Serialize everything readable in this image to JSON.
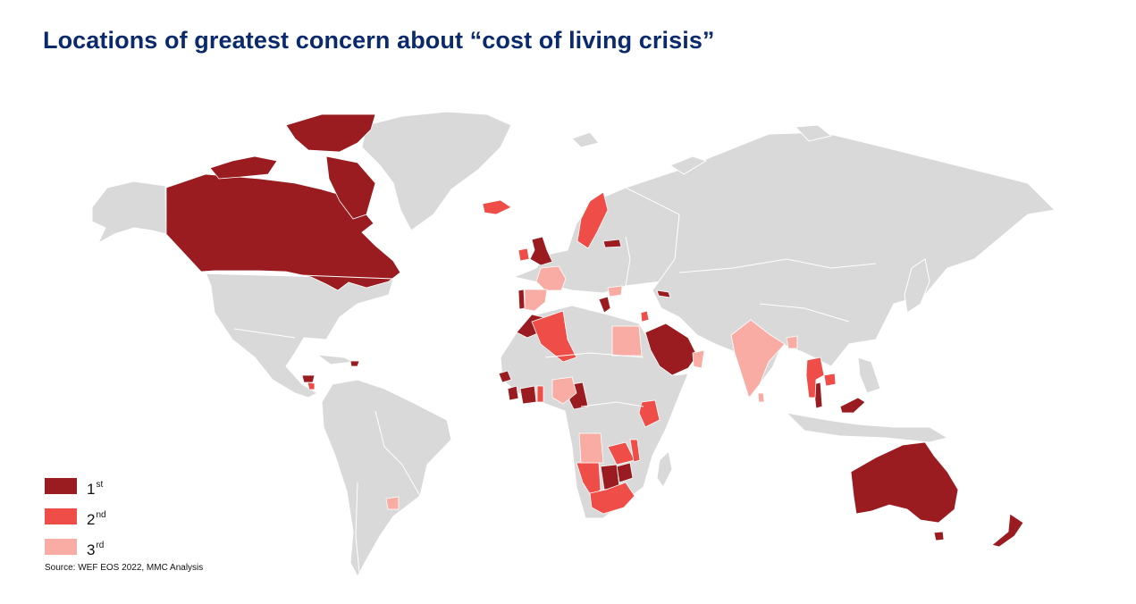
{
  "title": "Locations of greatest concern about “cost of living crisis”",
  "legend": [
    {
      "rank": "1",
      "suffix": "st",
      "color": "#9b1c20"
    },
    {
      "rank": "2",
      "suffix": "nd",
      "color": "#ef4d47"
    },
    {
      "rank": "3",
      "suffix": "rd",
      "color": "#f8aca3"
    }
  ],
  "colors": {
    "land": "#d9d9d9",
    "first": "#9b1c20",
    "second": "#ef4d47",
    "third": "#f8aca3",
    "title": "#0b2a6e"
  },
  "regions": {
    "first": [
      "Canada",
      "United Kingdom",
      "Latvia",
      "Portugal",
      "Morocco",
      "Saudi Arabia",
      "Greece",
      "Albania",
      "Georgia",
      "Jordan",
      "Sierra Leone",
      "Ivory Coast",
      "Ghana",
      "Cameroon",
      "Zimbabwe",
      "Botswana",
      "Lesotho",
      "Honduras",
      "Dominican Republic",
      "Malaysia",
      "Australia",
      "New Zealand"
    ],
    "second": [
      "Sweden",
      "Iceland",
      "Ireland",
      "Algeria",
      "Benin",
      "Kenya",
      "Zambia",
      "Malawi",
      "Namibia",
      "South Africa",
      "Lebanon",
      "Thailand",
      "Cambodia",
      "Costa Rica"
    ],
    "third": [
      "France",
      "Spain",
      "Bulgaria",
      "Egypt",
      "Nigeria",
      "Angola",
      "Oman",
      "India",
      "Sri Lanka",
      "Bangladesh",
      "Uruguay"
    ]
  },
  "source": "Source: WEF EOS 2022, MMC Analysis"
}
